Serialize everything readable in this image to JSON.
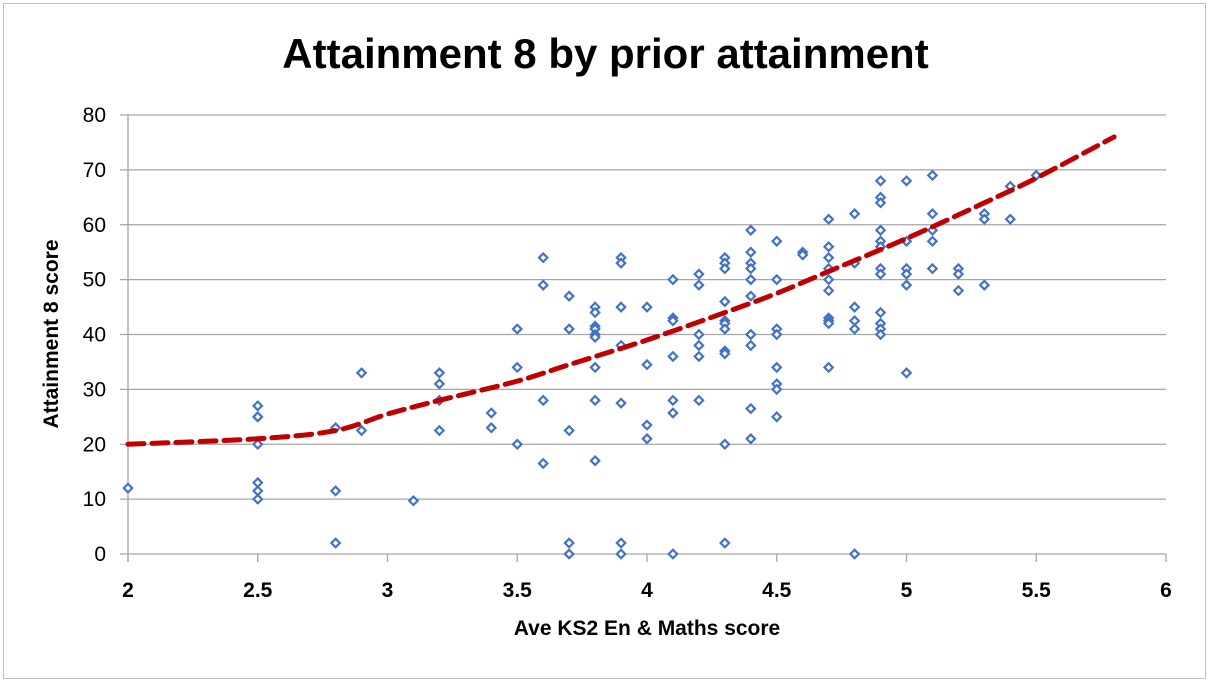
{
  "chart_data": {
    "type": "scatter",
    "title": "Attainment 8 by prior attainment",
    "xlabel": "Ave KS2 En & Maths score",
    "ylabel": "Attainment 8 score",
    "xlim": [
      2,
      6
    ],
    "ylim": [
      0,
      80
    ],
    "x_ticks": [
      "2",
      "2.5",
      "3",
      "3.5",
      "4",
      "4.5",
      "5",
      "5.5",
      "6"
    ],
    "y_ticks": [
      "0",
      "10",
      "20",
      "30",
      "40",
      "50",
      "60",
      "70",
      "80"
    ],
    "grid": "horizontal",
    "colors": {
      "points": "#4472c4",
      "trendline": "#c00000"
    },
    "points": [
      [
        2,
        12
      ],
      [
        2.5,
        27
      ],
      [
        2.5,
        25
      ],
      [
        2.5,
        25
      ],
      [
        2.5,
        20
      ],
      [
        2.5,
        13
      ],
      [
        2.5,
        11.5
      ],
      [
        2.5,
        10
      ],
      [
        2.8,
        23
      ],
      [
        2.8,
        11.5
      ],
      [
        2.8,
        2
      ],
      [
        2.9,
        33
      ],
      [
        2.9,
        22.5
      ],
      [
        3.1,
        9.7
      ],
      [
        3.2,
        33
      ],
      [
        3.2,
        31
      ],
      [
        3.2,
        28
      ],
      [
        3.2,
        22.5
      ],
      [
        3.4,
        25.7
      ],
      [
        3.4,
        23
      ],
      [
        3.5,
        41
      ],
      [
        3.5,
        34
      ],
      [
        3.5,
        20
      ],
      [
        3.6,
        54
      ],
      [
        3.6,
        49
      ],
      [
        3.6,
        28
      ],
      [
        3.6,
        16.5
      ],
      [
        3.7,
        47
      ],
      [
        3.7,
        41
      ],
      [
        3.7,
        22.5
      ],
      [
        3.7,
        2
      ],
      [
        3.7,
        0
      ],
      [
        3.8,
        45
      ],
      [
        3.8,
        44
      ],
      [
        3.8,
        41.5
      ],
      [
        3.8,
        41
      ],
      [
        3.8,
        40
      ],
      [
        3.8,
        39.5
      ],
      [
        3.8,
        34
      ],
      [
        3.8,
        28
      ],
      [
        3.8,
        17
      ],
      [
        3.9,
        54
      ],
      [
        3.9,
        53
      ],
      [
        3.9,
        45
      ],
      [
        3.9,
        38
      ],
      [
        3.9,
        27.5
      ],
      [
        3.9,
        2
      ],
      [
        3.9,
        0
      ],
      [
        4.0,
        45
      ],
      [
        4.0,
        34.5
      ],
      [
        4.0,
        23.5
      ],
      [
        4.0,
        21
      ],
      [
        4.1,
        50
      ],
      [
        4.1,
        43
      ],
      [
        4.1,
        42.5
      ],
      [
        4.1,
        36
      ],
      [
        4.1,
        28
      ],
      [
        4.1,
        25.7
      ],
      [
        4.1,
        0
      ],
      [
        4.2,
        51
      ],
      [
        4.2,
        49
      ],
      [
        4.2,
        40
      ],
      [
        4.2,
        38
      ],
      [
        4.2,
        36
      ],
      [
        4.2,
        28
      ],
      [
        4.3,
        54
      ],
      [
        4.3,
        53
      ],
      [
        4.3,
        52
      ],
      [
        4.3,
        46
      ],
      [
        4.3,
        42.5
      ],
      [
        4.3,
        42
      ],
      [
        4.3,
        41
      ],
      [
        4.3,
        37
      ],
      [
        4.3,
        36.5
      ],
      [
        4.3,
        20
      ],
      [
        4.3,
        2
      ],
      [
        4.4,
        59
      ],
      [
        4.4,
        55
      ],
      [
        4.4,
        53
      ],
      [
        4.4,
        52
      ],
      [
        4.4,
        50
      ],
      [
        4.4,
        47
      ],
      [
        4.4,
        40
      ],
      [
        4.4,
        40
      ],
      [
        4.4,
        38
      ],
      [
        4.4,
        26.5
      ],
      [
        4.4,
        21
      ],
      [
        4.5,
        57
      ],
      [
        4.5,
        50
      ],
      [
        4.5,
        41
      ],
      [
        4.5,
        40
      ],
      [
        4.5,
        34
      ],
      [
        4.5,
        31
      ],
      [
        4.5,
        30
      ],
      [
        4.5,
        25
      ],
      [
        4.6,
        55
      ],
      [
        4.6,
        54.5
      ],
      [
        4.7,
        61
      ],
      [
        4.7,
        56
      ],
      [
        4.7,
        54
      ],
      [
        4.7,
        52
      ],
      [
        4.7,
        50
      ],
      [
        4.7,
        48
      ],
      [
        4.7,
        43
      ],
      [
        4.7,
        42.5
      ],
      [
        4.7,
        42
      ],
      [
        4.7,
        34
      ],
      [
        4.8,
        62
      ],
      [
        4.8,
        53
      ],
      [
        4.8,
        45
      ],
      [
        4.8,
        42.5
      ],
      [
        4.8,
        41
      ],
      [
        4.8,
        0
      ],
      [
        4.9,
        68
      ],
      [
        4.9,
        65
      ],
      [
        4.9,
        64
      ],
      [
        4.9,
        59
      ],
      [
        4.9,
        57
      ],
      [
        4.9,
        56
      ],
      [
        4.9,
        52
      ],
      [
        4.9,
        51
      ],
      [
        4.9,
        44
      ],
      [
        4.9,
        42
      ],
      [
        4.9,
        41
      ],
      [
        4.9,
        40
      ],
      [
        5.0,
        68
      ],
      [
        5.0,
        57
      ],
      [
        5.0,
        52
      ],
      [
        5.0,
        51
      ],
      [
        5.0,
        49
      ],
      [
        5.0,
        33
      ],
      [
        5.1,
        69
      ],
      [
        5.1,
        62
      ],
      [
        5.1,
        59
      ],
      [
        5.1,
        57
      ],
      [
        5.1,
        52
      ],
      [
        5.2,
        52
      ],
      [
        5.2,
        51
      ],
      [
        5.2,
        48
      ],
      [
        5.3,
        62
      ],
      [
        5.3,
        61
      ],
      [
        5.3,
        49
      ],
      [
        5.4,
        67
      ],
      [
        5.4,
        61
      ],
      [
        5.5,
        69
      ]
    ],
    "trendline": {
      "style": "dashed",
      "points": [
        [
          2,
          20
        ],
        [
          2.5,
          21
        ],
        [
          2.8,
          22.5
        ],
        [
          3,
          25.5
        ],
        [
          3.2,
          28
        ],
        [
          3.5,
          31.5
        ],
        [
          3.7,
          34.5
        ],
        [
          4,
          39
        ],
        [
          4.3,
          44
        ],
        [
          4.5,
          47.5
        ],
        [
          4.7,
          51.5
        ],
        [
          5,
          57.5
        ],
        [
          5.3,
          64
        ],
        [
          5.5,
          68.5
        ],
        [
          5.8,
          76
        ]
      ]
    }
  }
}
